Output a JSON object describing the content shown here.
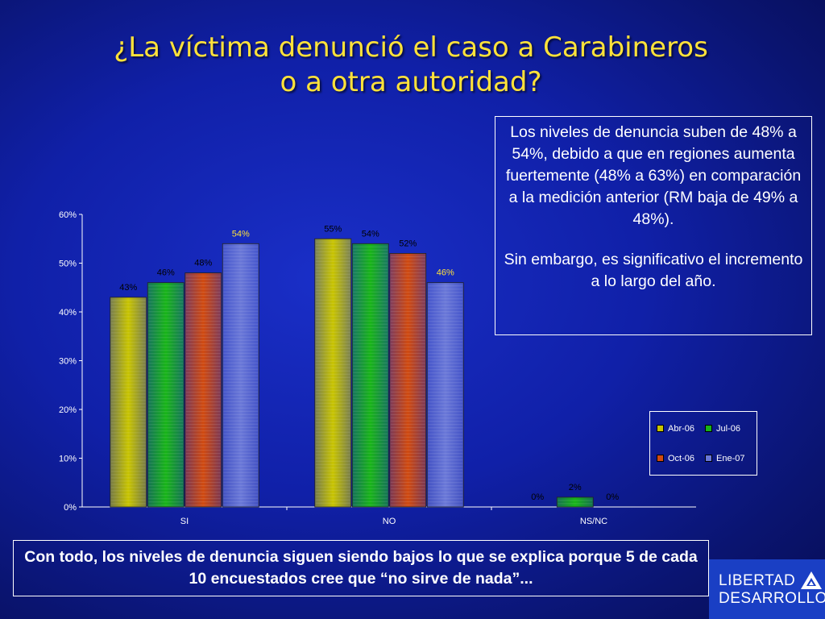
{
  "title": {
    "line1": "¿La víctima denunció el caso a Carabineros",
    "line2": "o a otra autoridad?"
  },
  "note": {
    "paragraph1": "Los niveles de denuncia suben de 48% a 54%, debido a que en regiones aumenta fuertemente (48% a 63%) en comparación a la medición anterior (RM baja de 49% a 48%).",
    "paragraph2": "Sin embargo, es significativo el incremento  a lo largo del año."
  },
  "bottom_note": "Con todo, los niveles de denuncia siguen siendo bajos lo que se explica porque 5 de cada 10 encuestados cree que “no sirve de nada”...",
  "logo": {
    "line1": "LIBERTAD",
    "line2": "DESARROLLO",
    "icon": "triangle-logo-icon"
  },
  "chart_data": {
    "type": "bar",
    "categories": [
      "SI",
      "NO",
      "NS/NC"
    ],
    "series": [
      {
        "name": "Abr-06",
        "values": [
          43,
          55,
          0
        ],
        "labels": [
          "43%",
          "55%",
          "0%"
        ],
        "color": "#c8c400"
      },
      {
        "name": "Jul-06",
        "values": [
          46,
          54,
          2
        ],
        "labels": [
          "46%",
          "54%",
          "2%"
        ],
        "color": "#18b418"
      },
      {
        "name": "Oct-06",
        "values": [
          48,
          52,
          0
        ],
        "labels": [
          "48%",
          "52%",
          "0%"
        ],
        "color": "#d04a10"
      },
      {
        "name": "Ene-07",
        "values": [
          54,
          46,
          null
        ],
        "labels": [
          "54%",
          "46%",
          ""
        ],
        "color": "#6a78d8"
      }
    ],
    "label_colors": [
      "#000000",
      "#000000",
      "#000000",
      "#ffe23a"
    ],
    "ylim": [
      0,
      60
    ],
    "yticks": [
      0,
      10,
      20,
      30,
      40,
      50,
      60
    ],
    "ytick_labels": [
      "0%",
      "10%",
      "20%",
      "30%",
      "40%",
      "50%",
      "60%"
    ],
    "legend_position": "right",
    "grid": false
  }
}
